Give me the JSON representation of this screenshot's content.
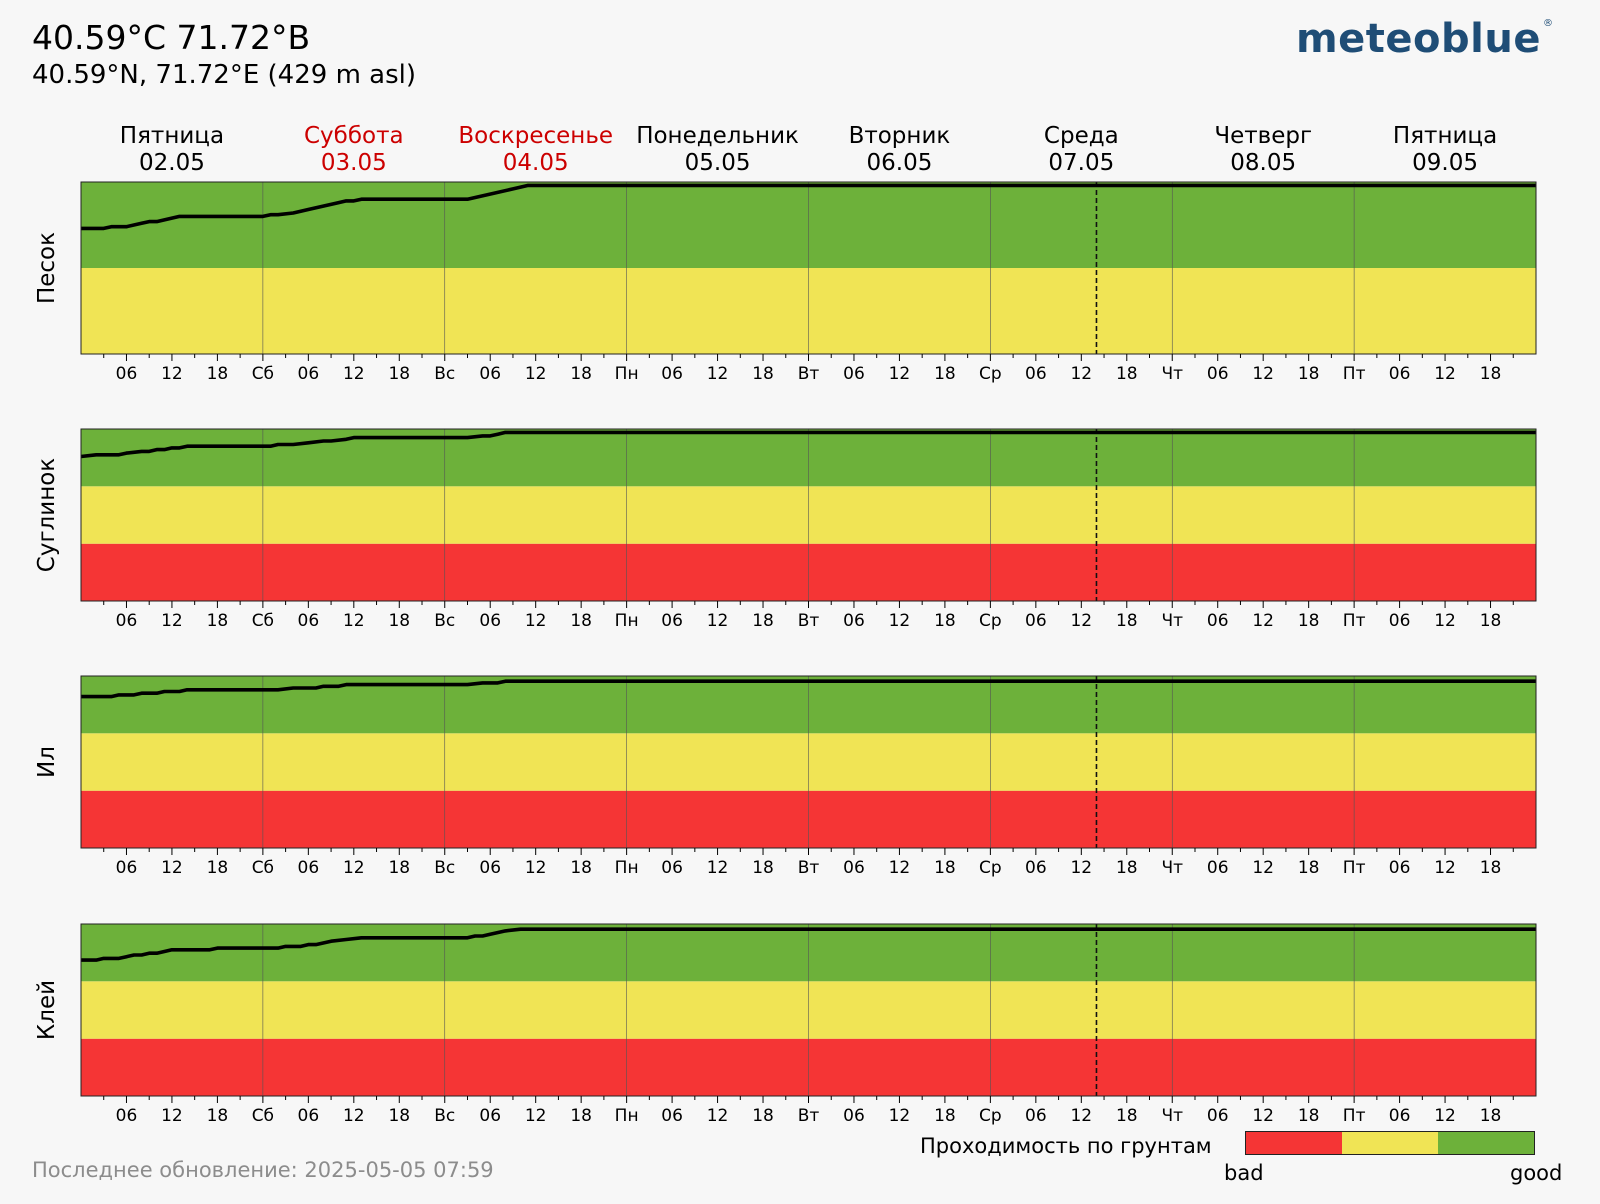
{
  "header": {
    "title": "40.59°C 71.72°B",
    "subtitle": "40.59°N, 71.72°E (429 m asl)",
    "logo": "meteoblue",
    "logo_mark": "®"
  },
  "days": [
    {
      "name": "Пятница",
      "date": "02.05",
      "weekend": false
    },
    {
      "name": "Суббота",
      "date": "03.05",
      "weekend": true
    },
    {
      "name": "Воскресенье",
      "date": "04.05",
      "weekend": true
    },
    {
      "name": "Понедельник",
      "date": "05.05",
      "weekend": false
    },
    {
      "name": "Вторник",
      "date": "06.05",
      "weekend": false
    },
    {
      "name": "Среда",
      "date": "07.05",
      "weekend": false
    },
    {
      "name": "Четверг",
      "date": "08.05",
      "weekend": false
    },
    {
      "name": "Пятница",
      "date": "09.05",
      "weekend": false
    }
  ],
  "footer": {
    "updated": "Последнее обновление: 2025-05-05 07:59"
  },
  "legend": {
    "title": "Проходимость по грунтам",
    "bad": "bad",
    "good": "good",
    "colors": [
      "#f53535",
      "#f0e455",
      "#6db13a"
    ]
  },
  "chart_data": {
    "type": "line",
    "x_unit": "hours",
    "x_range": [
      0,
      192
    ],
    "y_range": [
      0,
      100
    ],
    "now_hour": 134,
    "weekend_color": "#cc0000",
    "zone_colors": {
      "bad": "#f53535",
      "medium": "#f0e455",
      "good": "#6db13a"
    },
    "tick_labels": [
      "",
      "06",
      "12",
      "18",
      "Сб",
      "06",
      "12",
      "18",
      "Вс",
      "06",
      "12",
      "18",
      "Пн",
      "06",
      "12",
      "18",
      "Вт",
      "06",
      "12",
      "18",
      "Ср",
      "06",
      "12",
      "18",
      "Чт",
      "06",
      "12",
      "18",
      "Пт",
      "06",
      "12",
      "18"
    ],
    "panels": [
      {
        "name": "Песок",
        "zones": [
          {
            "from": 0,
            "to": 50,
            "level": "medium"
          },
          {
            "from": 50,
            "to": 100,
            "level": "good"
          }
        ],
        "points": [
          [
            0,
            73
          ],
          [
            3,
            73
          ],
          [
            4,
            74
          ],
          [
            6,
            74
          ],
          [
            8,
            76
          ],
          [
            9,
            77
          ],
          [
            10,
            77
          ],
          [
            12,
            79
          ],
          [
            13,
            80
          ],
          [
            24,
            80
          ],
          [
            25,
            81
          ],
          [
            26,
            81
          ],
          [
            28,
            82
          ],
          [
            30,
            84
          ],
          [
            34,
            88
          ],
          [
            35,
            89
          ],
          [
            36,
            89
          ],
          [
            37,
            90
          ],
          [
            51,
            90
          ],
          [
            57,
            96
          ],
          [
            59,
            98
          ],
          [
            192,
            98
          ]
        ]
      },
      {
        "name": "Суглинок",
        "zones": [
          {
            "from": 0,
            "to": 33.3,
            "level": "bad"
          },
          {
            "from": 33.3,
            "to": 66.7,
            "level": "medium"
          },
          {
            "from": 66.7,
            "to": 100,
            "level": "good"
          }
        ],
        "points": [
          [
            0,
            84
          ],
          [
            2,
            85
          ],
          [
            5,
            85
          ],
          [
            6,
            86
          ],
          [
            8,
            87
          ],
          [
            9,
            87
          ],
          [
            10,
            88
          ],
          [
            11,
            88
          ],
          [
            12,
            89
          ],
          [
            13,
            89
          ],
          [
            14,
            90
          ],
          [
            25,
            90
          ],
          [
            26,
            91
          ],
          [
            28,
            91
          ],
          [
            30,
            92
          ],
          [
            32,
            93
          ],
          [
            33,
            93
          ],
          [
            35,
            94
          ],
          [
            36,
            95
          ],
          [
            51,
            95
          ],
          [
            53,
            96
          ],
          [
            54,
            96
          ],
          [
            55,
            97
          ],
          [
            56,
            98
          ],
          [
            192,
            98
          ]
        ]
      },
      {
        "name": "Ил",
        "zones": [
          {
            "from": 0,
            "to": 33.3,
            "level": "bad"
          },
          {
            "from": 33.3,
            "to": 66.7,
            "level": "medium"
          },
          {
            "from": 66.7,
            "to": 100,
            "level": "good"
          }
        ],
        "points": [
          [
            0,
            88
          ],
          [
            4,
            88
          ],
          [
            5,
            89
          ],
          [
            7,
            89
          ],
          [
            8,
            90
          ],
          [
            10,
            90
          ],
          [
            11,
            91
          ],
          [
            13,
            91
          ],
          [
            14,
            92
          ],
          [
            26,
            92
          ],
          [
            28,
            93
          ],
          [
            31,
            93
          ],
          [
            32,
            94
          ],
          [
            34,
            94
          ],
          [
            35,
            95
          ],
          [
            51,
            95
          ],
          [
            53,
            96
          ],
          [
            55,
            96
          ],
          [
            56,
            97
          ],
          [
            192,
            97
          ]
        ]
      },
      {
        "name": "Клей",
        "zones": [
          {
            "from": 0,
            "to": 33.3,
            "level": "bad"
          },
          {
            "from": 33.3,
            "to": 66.7,
            "level": "medium"
          },
          {
            "from": 66.7,
            "to": 100,
            "level": "good"
          }
        ],
        "points": [
          [
            0,
            79
          ],
          [
            2,
            79
          ],
          [
            3,
            80
          ],
          [
            5,
            80
          ],
          [
            6,
            81
          ],
          [
            7,
            82
          ],
          [
            8,
            82
          ],
          [
            9,
            83
          ],
          [
            10,
            83
          ],
          [
            11,
            84
          ],
          [
            12,
            85
          ],
          [
            17,
            85
          ],
          [
            18,
            86
          ],
          [
            26,
            86
          ],
          [
            27,
            87
          ],
          [
            29,
            87
          ],
          [
            30,
            88
          ],
          [
            31,
            88
          ],
          [
            33,
            90
          ],
          [
            35,
            91
          ],
          [
            37,
            92
          ],
          [
            51,
            92
          ],
          [
            52,
            93
          ],
          [
            53,
            93
          ],
          [
            54,
            94
          ],
          [
            56,
            96
          ],
          [
            58,
            97
          ],
          [
            59,
            97
          ],
          [
            192,
            97
          ]
        ]
      }
    ]
  }
}
